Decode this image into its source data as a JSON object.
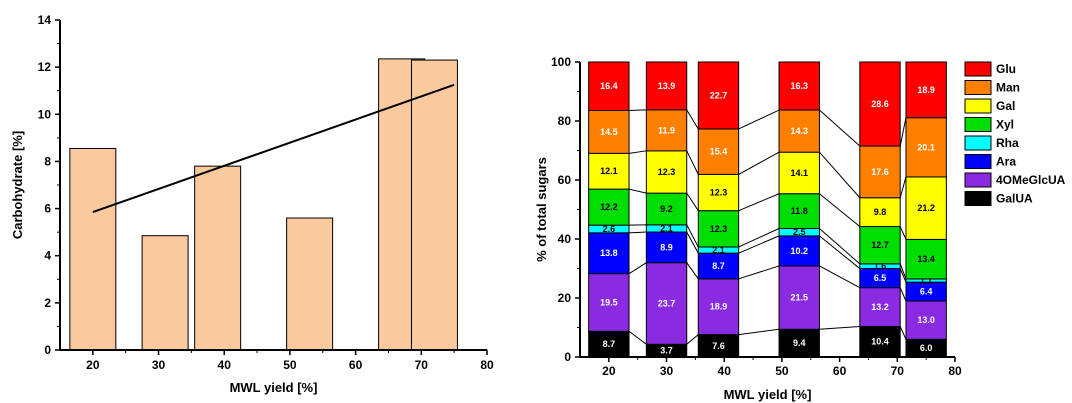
{
  "colors": {
    "bar_fill": "#FACA9E",
    "bar_stroke": "#000000",
    "trend_line": "#000000",
    "connector": "#000000"
  },
  "chart_data": [
    {
      "type": "bar",
      "xlabel": "MWL yield [%]",
      "ylabel": "Carbohydrate [%]",
      "xlim": [
        15,
        80
      ],
      "ylim": [
        0,
        14
      ],
      "xticks": [
        20,
        30,
        40,
        50,
        60,
        70,
        80
      ],
      "yticks": [
        0,
        2,
        4,
        6,
        8,
        10,
        12,
        14
      ],
      "bar_width": 7,
      "x": [
        20,
        31,
        39,
        53,
        67,
        72
      ],
      "values": [
        8.55,
        4.85,
        7.8,
        5.6,
        12.35,
        12.3
      ],
      "trendline": {
        "x": [
          20,
          75
        ],
        "y": [
          5.85,
          11.25
        ]
      },
      "grid": false
    },
    {
      "type": "bar",
      "stacked": true,
      "xlabel": "MWL yield [%]",
      "ylabel": "% of total sugars",
      "xlim": [
        15,
        80
      ],
      "ylim": [
        0,
        100
      ],
      "xticks": [
        20,
        30,
        40,
        50,
        60,
        70,
        80
      ],
      "yticks": [
        0,
        20,
        40,
        60,
        80,
        100
      ],
      "bar_width": 7,
      "x": [
        20,
        30,
        39,
        53,
        67,
        75
      ],
      "legend_position": "right",
      "grid": false,
      "series": [
        {
          "name": "GalUA",
          "color": "#000000",
          "values": [
            8.7,
            3.7,
            7.6,
            9.4,
            10.4,
            6.0
          ]
        },
        {
          "name": "4OMeGlcUA",
          "color": "#8A2BE2",
          "values": [
            19.5,
            23.7,
            18.9,
            21.5,
            13.2,
            13.0
          ]
        },
        {
          "name": "Ara",
          "color": "#0000FF",
          "values": [
            13.8,
            8.9,
            8.7,
            10.2,
            6.5,
            6.4
          ]
        },
        {
          "name": "Rha",
          "color": "#00FFFF",
          "values": [
            2.6,
            2.1,
            2.1,
            2.5,
            1.6,
            1.1
          ]
        },
        {
          "name": "Xyl",
          "color": "#00DD00",
          "values": [
            12.2,
            9.2,
            12.3,
            11.8,
            12.7,
            13.4
          ]
        },
        {
          "name": "Gal",
          "color": "#FFFF00",
          "values": [
            12.1,
            12.3,
            12.3,
            14.1,
            9.8,
            21.2
          ]
        },
        {
          "name": "Man",
          "color": "#FF8000",
          "values": [
            14.5,
            11.9,
            15.4,
            14.3,
            17.6,
            20.1
          ]
        },
        {
          "name": "Glu",
          "color": "#FF0000",
          "values": [
            16.4,
            13.9,
            22.7,
            16.3,
            28.6,
            18.9
          ]
        }
      ],
      "labels": [
        [
          "8.7",
          "3.7",
          "7.6",
          "9.4",
          "10.4",
          "6.0"
        ],
        [
          "19.5",
          "23.7",
          "18.9",
          "21.5",
          "13.2",
          "13.0"
        ],
        [
          "13.8",
          "8.9",
          "8.7",
          "10.2",
          "6.5",
          "6.4"
        ],
        [
          "2.6",
          "2.1",
          "2.1",
          "2.5",
          "1.6",
          "1.1"
        ],
        [
          "12.2",
          "9.2",
          "12.3",
          "11.8",
          "12.7",
          "13.4"
        ],
        [
          "12.1",
          "12.3",
          "12.3",
          "14.1",
          "9.8",
          "21.2"
        ],
        [
          "14.5",
          "11.9",
          "15.4",
          "14.3",
          "17.6",
          "20.1"
        ],
        [
          "16.4",
          "13.9",
          "22.7",
          "16.3",
          "28.6",
          "18.9"
        ]
      ],
      "legend_order": [
        "Glu",
        "Man",
        "Gal",
        "Xyl",
        "Rha",
        "Ara",
        "4OMeGlcUA",
        "GalUA"
      ]
    }
  ]
}
